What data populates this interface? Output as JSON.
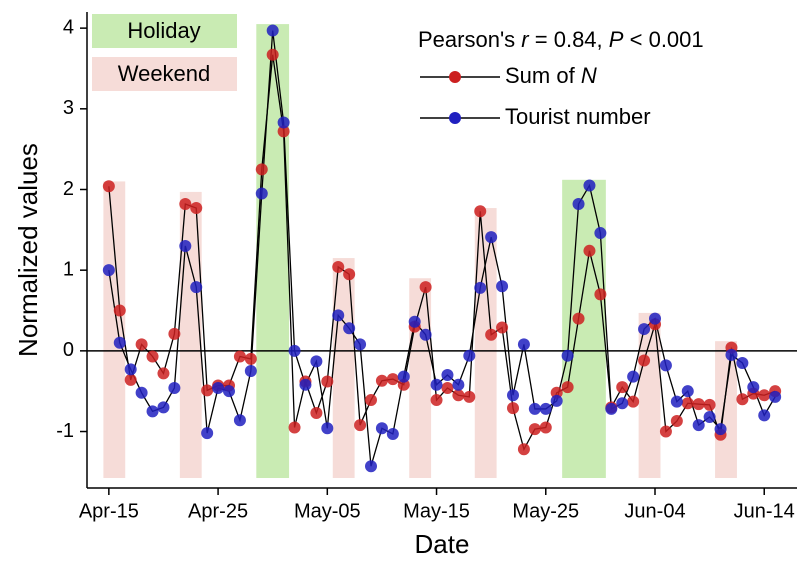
{
  "chart_data": {
    "type": "line",
    "annotation": "Pearson's r = 0.84, P < 0.001",
    "x_label": "Date",
    "y_label": "Normalized values",
    "x": [
      "04-15",
      "04-16",
      "04-17",
      "04-18",
      "04-19",
      "04-20",
      "04-21",
      "04-22",
      "04-23",
      "04-24",
      "04-25",
      "04-26",
      "04-27",
      "04-28",
      "04-29",
      "04-30",
      "05-01",
      "05-02",
      "05-03",
      "05-04",
      "05-05",
      "05-06",
      "05-07",
      "05-08",
      "05-09",
      "05-10",
      "05-11",
      "05-12",
      "05-13",
      "05-14",
      "05-15",
      "05-16",
      "05-17",
      "05-18",
      "05-19",
      "05-20",
      "05-21",
      "05-22",
      "05-23",
      "05-24",
      "05-25",
      "05-26",
      "05-27",
      "05-28",
      "05-29",
      "05-30",
      "05-31",
      "06-01",
      "06-02",
      "06-03",
      "06-04",
      "06-05",
      "06-06",
      "06-07",
      "06-08",
      "06-09",
      "06-10",
      "06-11",
      "06-12",
      "06-13",
      "06-14",
      "06-15"
    ],
    "series": [
      {
        "name": "Sum of N",
        "color": "#cc2020",
        "values": [
          2.04,
          0.5,
          -0.36,
          0.08,
          -0.07,
          -0.28,
          0.21,
          1.82,
          1.77,
          -0.49,
          -0.43,
          -0.43,
          -0.07,
          -0.1,
          2.25,
          3.67,
          2.72,
          -0.95,
          -0.38,
          -0.77,
          -0.38,
          1.04,
          0.95,
          -0.92,
          -0.61,
          -0.37,
          -0.35,
          -0.42,
          0.3,
          0.79,
          -0.61,
          -0.46,
          -0.55,
          -0.57,
          1.73,
          0.2,
          0.29,
          -0.71,
          -1.22,
          -0.97,
          -0.95,
          -0.52,
          -0.45,
          0.4,
          1.24,
          0.7,
          -0.7,
          -0.45,
          -0.63,
          -0.12,
          0.33,
          -1.0,
          -0.87,
          -0.65,
          -0.66,
          -0.67,
          -1.04,
          0.04,
          -0.6,
          -0.53,
          -0.55,
          -0.5
        ]
      },
      {
        "name": "Tourist number",
        "color": "#2020c0",
        "values": [
          1.0,
          0.1,
          -0.23,
          -0.52,
          -0.75,
          -0.7,
          -0.46,
          1.3,
          0.79,
          -1.02,
          -0.46,
          -0.5,
          -0.86,
          -0.25,
          1.95,
          3.97,
          2.83,
          0.0,
          -0.42,
          -0.13,
          -0.96,
          0.44,
          0.28,
          0.08,
          -1.43,
          -0.96,
          -1.03,
          -0.32,
          0.36,
          0.2,
          -0.42,
          -0.3,
          -0.42,
          -0.06,
          0.78,
          1.41,
          0.8,
          -0.55,
          0.08,
          -0.72,
          -0.72,
          -0.62,
          -0.06,
          1.82,
          2.05,
          1.46,
          -0.72,
          -0.65,
          -0.32,
          0.27,
          0.4,
          -0.18,
          -0.63,
          -0.5,
          -0.92,
          -0.82,
          -0.97,
          -0.05,
          -0.15,
          -0.45,
          -0.8,
          -0.57
        ]
      }
    ],
    "regions": [
      {
        "name": "Holiday",
        "color": "#c9ebb3",
        "spans": [
          {
            "start": "04-29",
            "end": "05-01",
            "top": 4.05
          },
          {
            "start": "05-27",
            "end": "05-30",
            "top": 2.12
          }
        ]
      },
      {
        "name": "Weekend",
        "color": "#f6dcd8",
        "spans": [
          {
            "start": "04-15",
            "end": "04-16",
            "top": 2.1
          },
          {
            "start": "04-22",
            "end": "04-23",
            "top": 1.97
          },
          {
            "start": "05-06",
            "end": "05-07",
            "top": 1.15
          },
          {
            "start": "05-13",
            "end": "05-14",
            "top": 0.9
          },
          {
            "start": "05-19",
            "end": "05-20",
            "top": 1.77
          },
          {
            "start": "06-03",
            "end": "06-04",
            "top": 0.47
          },
          {
            "start": "06-10",
            "end": "06-11",
            "top": 0.12
          }
        ]
      }
    ],
    "xlim": [
      "04-13",
      "06-17"
    ],
    "xticks": [
      {
        "value": "04-15",
        "label": "Apr-15"
      },
      {
        "value": "04-25",
        "label": "Apr-25"
      },
      {
        "value": "05-05",
        "label": "May-05"
      },
      {
        "value": "05-15",
        "label": "May-15"
      },
      {
        "value": "05-25",
        "label": "May-25"
      },
      {
        "value": "06-04",
        "label": "Jun-04"
      },
      {
        "value": "06-14",
        "label": "Jun-14"
      }
    ],
    "ylim": [
      -1.7,
      4.2
    ],
    "yticks": [
      -1,
      0,
      1,
      2,
      3,
      4
    ],
    "zero_line": true
  }
}
